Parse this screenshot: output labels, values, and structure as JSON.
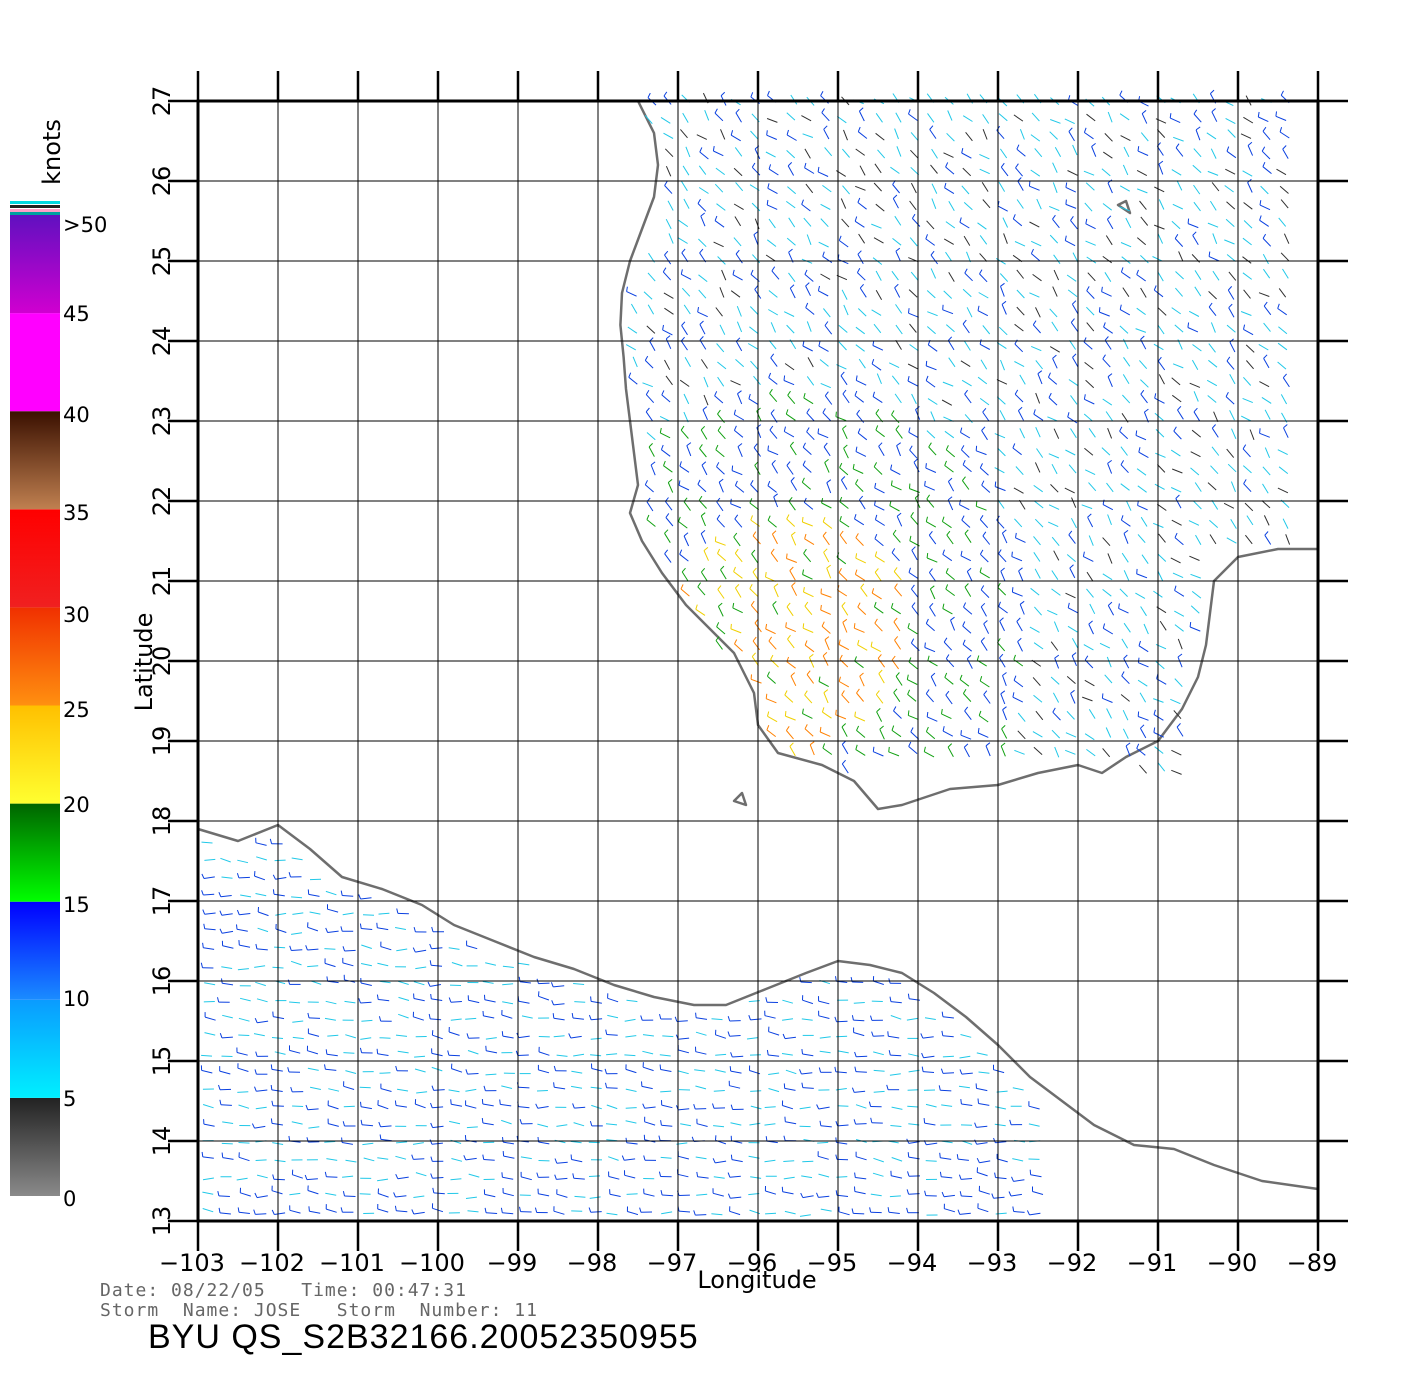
{
  "map": {
    "x_axis_title": "Longitude",
    "y_axis_title": "Latitude",
    "x_ticks": [
      "−103",
      "−102",
      "−101",
      "−100",
      "−99",
      "−98",
      "−97",
      "−96",
      "−95",
      "−94",
      "−93",
      "−92",
      "−91",
      "−90",
      "−89"
    ],
    "x_values": [
      -103,
      -102,
      -101,
      -100,
      -99,
      -98,
      -97,
      -96,
      -95,
      -94,
      -93,
      -92,
      -91,
      -90,
      -89
    ],
    "y_ticks": [
      "13",
      "14",
      "15",
      "16",
      "17",
      "18",
      "19",
      "20",
      "21",
      "22",
      "23",
      "24",
      "25",
      "26",
      "27"
    ],
    "y_values": [
      13,
      14,
      15,
      16,
      17,
      18,
      19,
      20,
      21,
      22,
      23,
      24,
      25,
      26,
      27
    ],
    "lon_range": [
      -103,
      -89
    ],
    "lat_range": [
      13,
      27
    ],
    "grid": true,
    "coastline_color": "#6e6e6e"
  },
  "colorbar": {
    "unit": "knots",
    "top_label": ">50",
    "labels": [
      "0",
      "5",
      "10",
      "15",
      "20",
      "25",
      "30",
      "35",
      "40",
      "45",
      ">50"
    ],
    "bands": [
      {
        "from": 0,
        "to": 5,
        "top": "#222222",
        "bottom": "#8a8a8a"
      },
      {
        "from": 5,
        "to": 10,
        "top": "#0a9bff",
        "bottom": "#00f0ff"
      },
      {
        "from": 10,
        "to": 15,
        "top": "#0000ff",
        "bottom": "#1a8cff"
      },
      {
        "from": 15,
        "to": 20,
        "top": "#006400",
        "bottom": "#00ff00"
      },
      {
        "from": 20,
        "to": 25,
        "top": "#ffc000",
        "bottom": "#ffff30"
      },
      {
        "from": 25,
        "to": 30,
        "top": "#f03000",
        "bottom": "#ff9010"
      },
      {
        "from": 30,
        "to": 35,
        "top": "#ff0000",
        "bottom": "#f02020"
      },
      {
        "from": 35,
        "to": 40,
        "top": "#3a1000",
        "bottom": "#c08050"
      },
      {
        "from": 40,
        "to": 45,
        "top": "#ff00ff",
        "bottom": "#ff00ff"
      },
      {
        "from": 45,
        "to": 50,
        "top": "#6010c0",
        "bottom": "#d000d0"
      }
    ]
  },
  "info": {
    "line1": "Date: 08/22/05   Time: 00:47:31",
    "line2": "Storm  Name: JOSE   Storm  Number: 11",
    "file_id": "BYU  QS_S2B32166.20052350955"
  }
}
